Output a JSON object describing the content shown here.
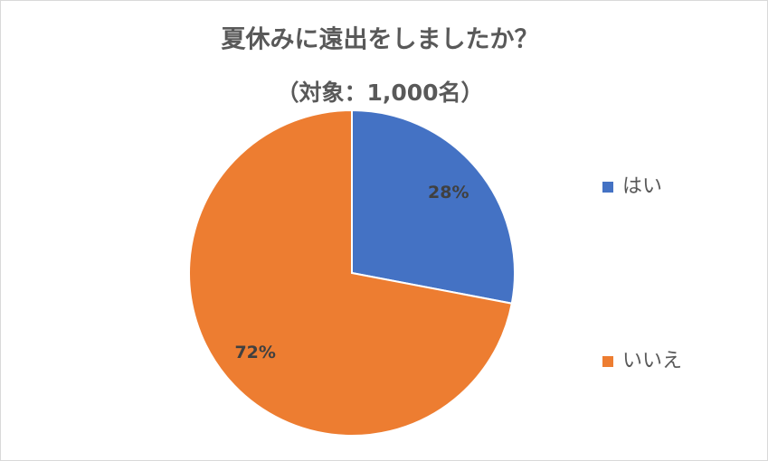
{
  "chart_data": {
    "type": "pie",
    "title": "夏休みに遠出をしましたか？",
    "subtitle": "（対象：1,000名）",
    "categories": [
      "はい",
      "いいえ"
    ],
    "values": [
      28,
      72
    ],
    "value_labels": [
      "28%",
      "72%"
    ],
    "colors": [
      "#4472c4",
      "#ed7d31"
    ],
    "legend": "right"
  }
}
